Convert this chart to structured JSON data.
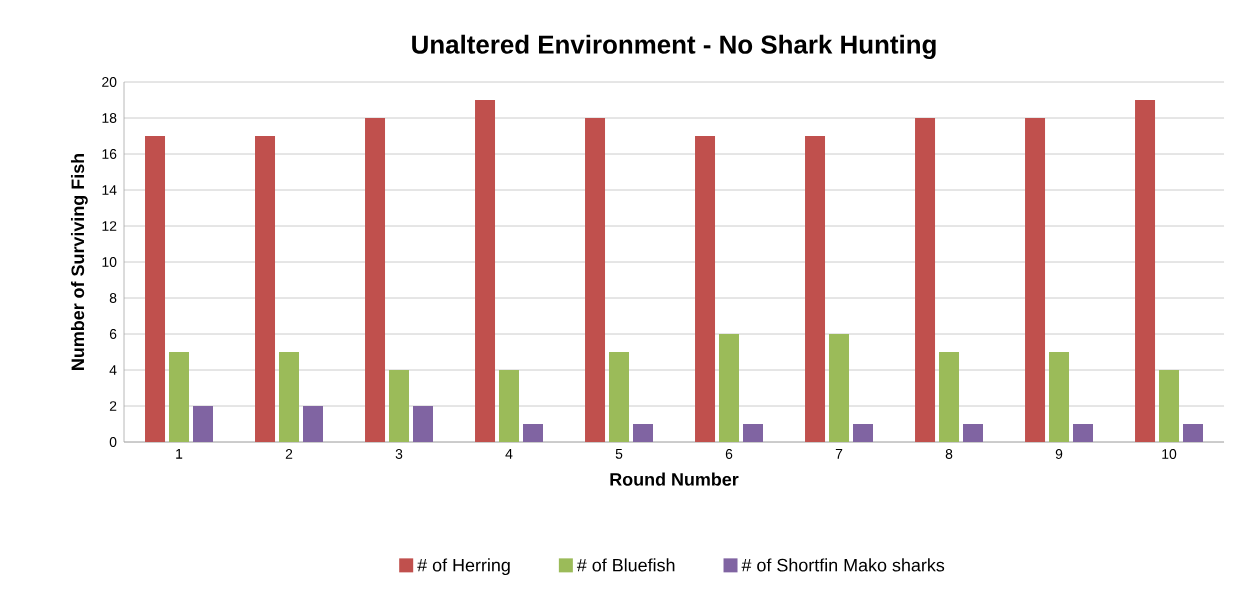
{
  "chart_data": {
    "type": "bar",
    "title": "Unaltered Environment - No Shark Hunting",
    "xlabel": "Round Number",
    "ylabel": "Number of Surviving Fish",
    "categories": [
      "1",
      "2",
      "3",
      "4",
      "5",
      "6",
      "7",
      "8",
      "9",
      "10"
    ],
    "series": [
      {
        "name": "# of Herring",
        "color": "#c0504d",
        "values": [
          17,
          17,
          18,
          19,
          18,
          17,
          17,
          18,
          18,
          19
        ]
      },
      {
        "name": "# of Bluefish",
        "color": "#9bbb59",
        "values": [
          5,
          5,
          4,
          4,
          5,
          6,
          6,
          5,
          5,
          4
        ]
      },
      {
        "name": "# of Shortfin Mako sharks",
        "color": "#8064a2",
        "values": [
          2,
          2,
          2,
          1,
          1,
          1,
          1,
          1,
          1,
          1
        ]
      }
    ],
    "ylim": [
      0,
      20
    ],
    "yticks": [
      0,
      2,
      4,
      6,
      8,
      10,
      12,
      14,
      16,
      18,
      20
    ],
    "grid": "y",
    "legend": "bottom"
  }
}
